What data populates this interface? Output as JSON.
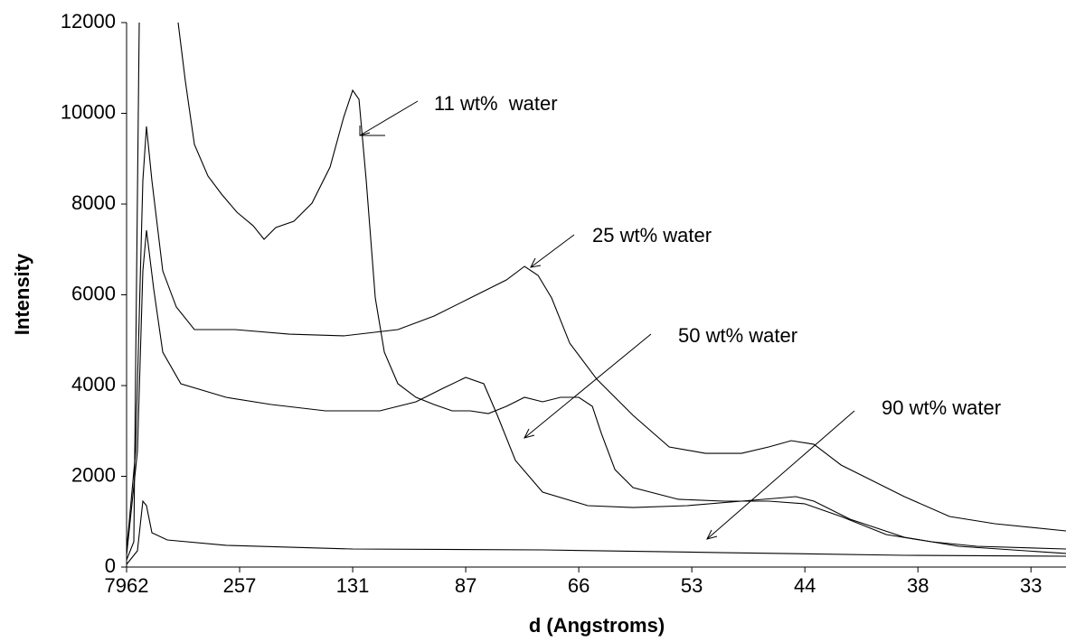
{
  "chart_data": {
    "type": "line",
    "xlabel": "d (Angstroms)",
    "ylabel": "Intensity",
    "xlim": [
      0,
      8.31
    ],
    "ylim": [
      0,
      12000
    ],
    "xticks": [
      {
        "value": 0,
        "label": "7962"
      },
      {
        "value": 1,
        "label": "257"
      },
      {
        "value": 2,
        "label": "131"
      },
      {
        "value": 3,
        "label": "87"
      },
      {
        "value": 4,
        "label": "66"
      },
      {
        "value": 5,
        "label": "53"
      },
      {
        "value": 6,
        "label": "44"
      },
      {
        "value": 7,
        "label": "38"
      },
      {
        "value": 8,
        "label": "33"
      }
    ],
    "yticks": [
      0,
      2000,
      4000,
      6000,
      8000,
      10000,
      12000
    ],
    "series": [
      {
        "name": "11 wt%  water",
        "color": "#000000",
        "x": [
          0,
          0.064,
          0.112,
          null,
          0.456,
          0.52,
          0.6,
          0.72,
          0.84,
          0.976,
          1.12,
          1.216,
          1.32,
          1.48,
          1.64,
          1.8,
          1.92,
          2.0,
          2.056,
          2.12,
          2.2,
          2.28,
          2.4,
          2.56,
          2.72,
          2.88,
          3.04,
          3.2,
          3.36,
          3.52,
          3.68,
          3.84,
          4.0,
          4.12,
          4.2,
          4.32,
          4.48,
          4.88,
          5.28,
          5.68,
          6.0,
          6.32,
          6.72,
          7.12,
          7.52,
          8.31
        ],
        "values": [
          159,
          557,
          12000,
          null,
          12000,
          10706,
          9313,
          8617,
          8219,
          7821,
          7522,
          7224,
          7483,
          7622,
          8020,
          8816,
          9910,
          10507,
          10308,
          8517,
          5930,
          4736,
          4040,
          3741,
          3582,
          3443,
          3443,
          3383,
          3542,
          3741,
          3642,
          3741,
          3741,
          3542,
          2945,
          2149,
          1751,
          1493,
          1453,
          1453,
          1393,
          1114,
          716,
          557,
          458,
          398
        ]
      },
      {
        "name": "25 wt% water",
        "color": "#000000",
        "x": [
          0,
          0.08,
          0.144,
          0.176,
          0.224,
          0.32,
          0.44,
          0.6,
          0.96,
          1.44,
          1.92,
          2.4,
          2.72,
          3.04,
          3.36,
          3.52,
          3.64,
          3.76,
          3.92,
          4.16,
          4.48,
          4.8,
          5.12,
          5.44,
          5.68,
          5.88,
          6.08,
          6.32,
          6.56,
          6.88,
          7.28,
          7.68,
          8.31
        ],
        "values": [
          358,
          2547,
          8517,
          9711,
          8517,
          6527,
          5731,
          5234,
          5234,
          5134,
          5095,
          5234,
          5532,
          5930,
          6328,
          6627,
          6428,
          5930,
          4935,
          4139,
          3343,
          2647,
          2507,
          2507,
          2647,
          2786,
          2706,
          2249,
          1950,
          1552,
          1114,
          955,
          796
        ]
      },
      {
        "name": "50 wt% water",
        "color": "#000000",
        "x": [
          0,
          0.096,
          0.144,
          0.176,
          0.24,
          0.32,
          0.48,
          0.88,
          1.28,
          1.76,
          2.24,
          2.56,
          2.8,
          3.0,
          3.16,
          3.28,
          3.44,
          3.68,
          4.08,
          4.48,
          4.96,
          5.44,
          5.92,
          6.08,
          6.4,
          6.88,
          7.36,
          8.31
        ],
        "values": [
          259,
          2547,
          6527,
          7423,
          6129,
          4736,
          4040,
          3741,
          3582,
          3443,
          3443,
          3642,
          3940,
          4179,
          4040,
          3343,
          2348,
          1652,
          1353,
          1313,
          1353,
          1453,
          1552,
          1453,
          1055,
          657,
          458,
          299
        ]
      },
      {
        "name": "90 wt% water",
        "color": "#000000",
        "x": [
          0,
          0.096,
          0.144,
          0.176,
          0.224,
          0.36,
          0.88,
          2.0,
          3.68,
          5.28,
          6.88,
          8.31
        ],
        "values": [
          60,
          358,
          1453,
          1353,
          756,
          597,
          478,
          398,
          378,
          318,
          259,
          239
        ]
      }
    ]
  }
}
